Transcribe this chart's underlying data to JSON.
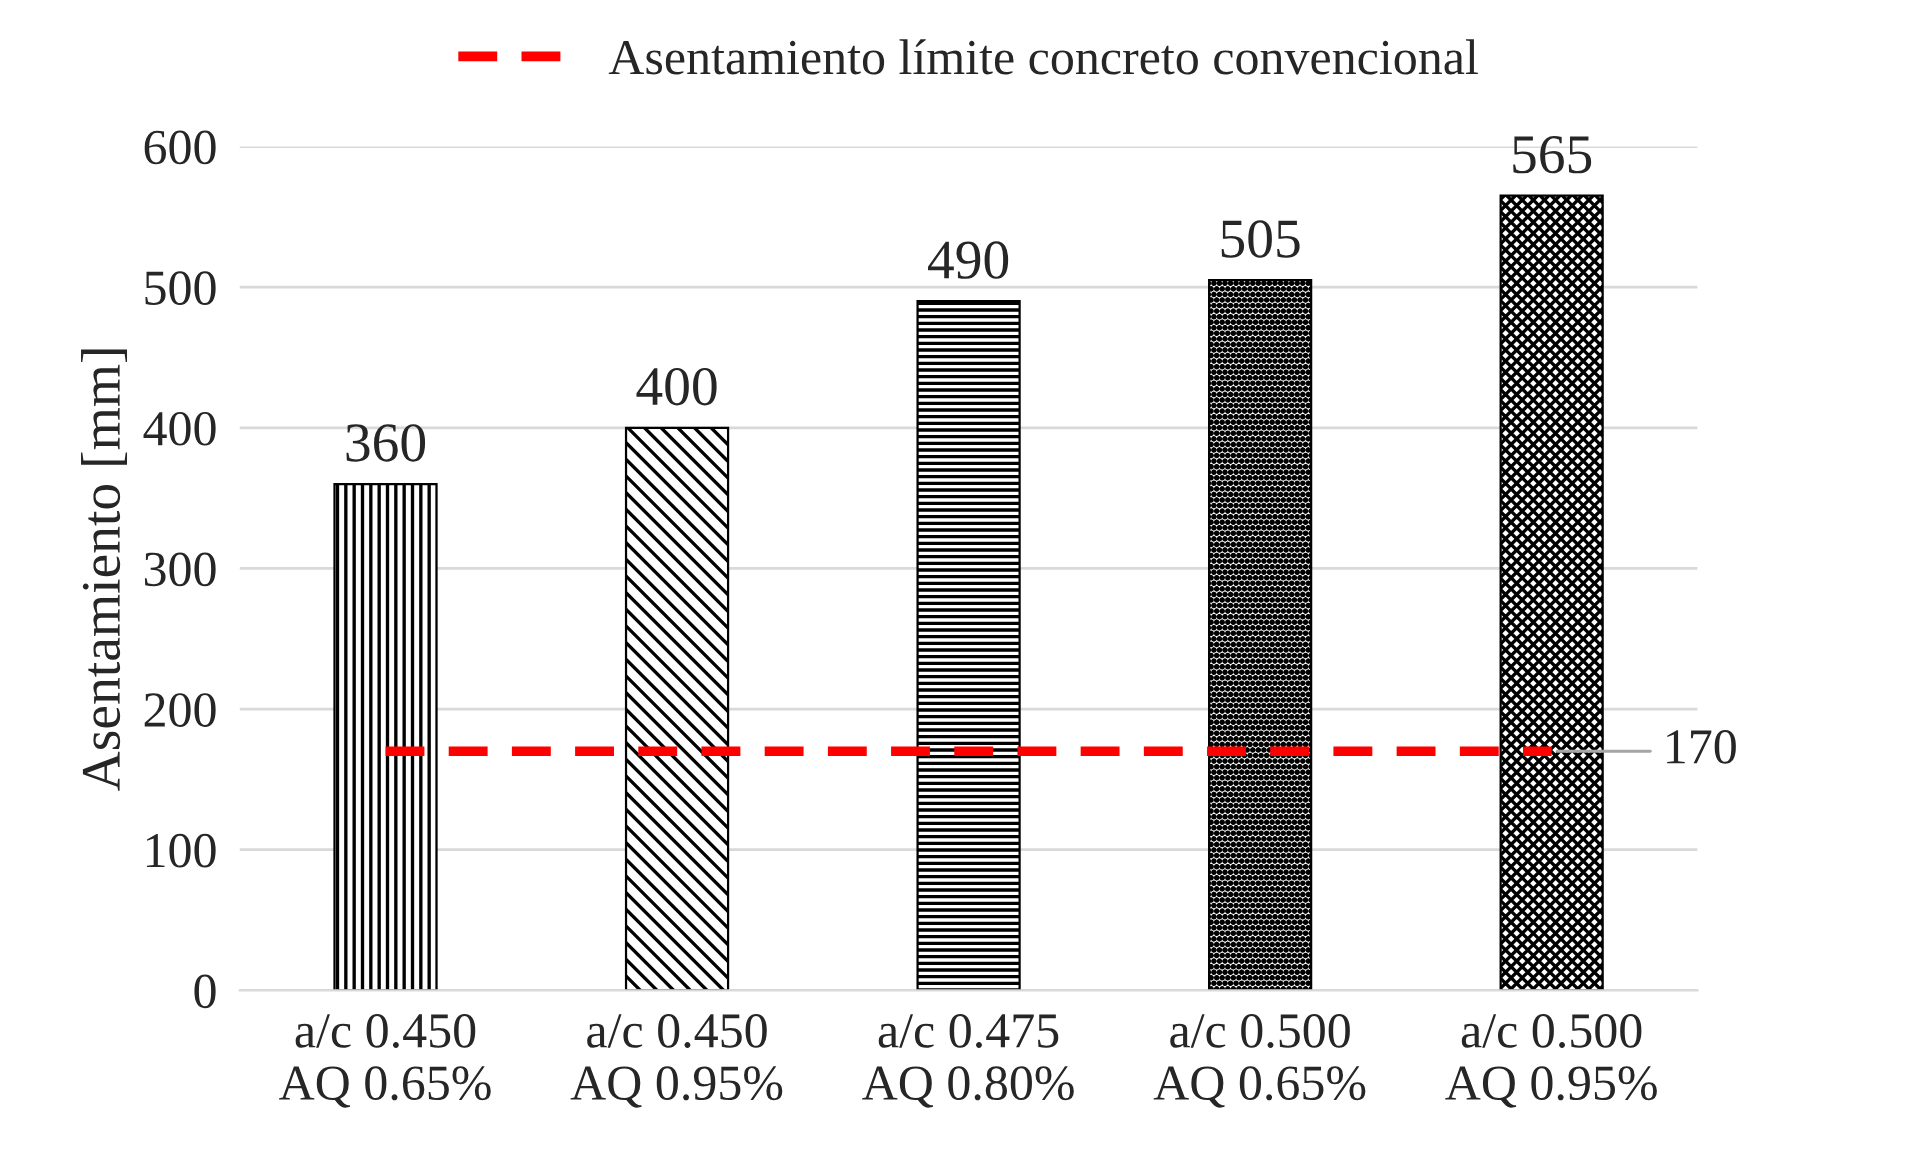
{
  "chart_data": {
    "type": "bar",
    "ylabel": "Asentamiento [mm]",
    "categories": [
      "a/c 0.450\nAQ 0.65%",
      "a/c 0.450\nAQ 0.95%",
      "a/c 0.475\nAQ 0.80%",
      "a/c 0.500\nAQ 0.65%",
      "a/c 0.500\nAQ 0.95%"
    ],
    "values": [
      360,
      400,
      490,
      505,
      565
    ],
    "colors": [
      "#000000",
      "#000000",
      "#000000",
      "#000000",
      "#000000"
    ],
    "ylim": [
      0,
      600
    ],
    "yticks": [
      0,
      100,
      200,
      300,
      400,
      500,
      600
    ],
    "grid": "y",
    "data_labels": true,
    "ref_lines": [
      {
        "axis": "y",
        "value": 170,
        "label": "Asentamiento límite concreto convencional",
        "color": "#ff0000",
        "line_style": "dashed"
      }
    ],
    "annotations": [
      {
        "text": "170",
        "x": "a/c 0.500\nAQ 0.95%",
        "y": 170
      }
    ],
    "legend": "top"
  }
}
